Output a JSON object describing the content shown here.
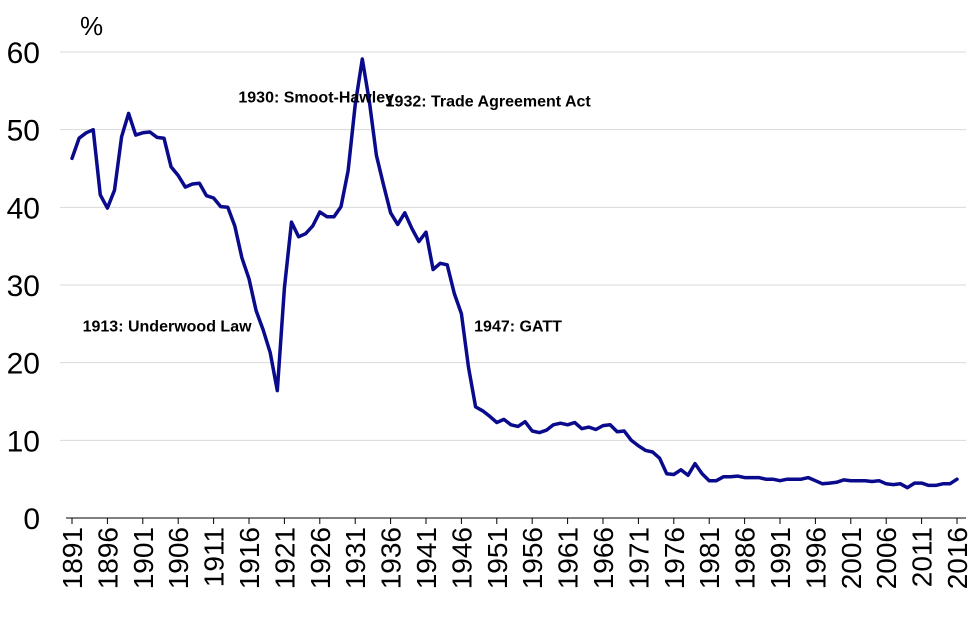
{
  "chart_data": {
    "type": "line",
    "title": "",
    "xlabel": "",
    "ylabel": "%",
    "ylim": [
      0,
      60
    ],
    "xlim": [
      1891,
      2016
    ],
    "y_ticks": [
      0,
      10,
      20,
      30,
      40,
      50,
      60
    ],
    "x_ticks": [
      1891,
      1896,
      1901,
      1906,
      1911,
      1916,
      1921,
      1926,
      1931,
      1936,
      1941,
      1946,
      1951,
      1956,
      1961,
      1966,
      1971,
      1976,
      1981,
      1986,
      1991,
      1996,
      2001,
      2006,
      2011,
      2016
    ],
    "grid": true,
    "line_color": "#0a0a8c",
    "series": [
      {
        "x": [
          1891,
          1892,
          1893,
          1894,
          1895,
          1896,
          1897,
          1898,
          1899,
          1900,
          1901,
          1902,
          1903,
          1904,
          1905,
          1906,
          1907,
          1908,
          1909,
          1910,
          1911,
          1912,
          1913,
          1914,
          1915,
          1916,
          1917,
          1918,
          1919,
          1920,
          1921,
          1922,
          1923,
          1924,
          1925,
          1926,
          1927,
          1928,
          1929,
          1930,
          1931,
          1932,
          1933,
          1934,
          1935,
          1936,
          1937,
          1938,
          1939,
          1940,
          1941,
          1942,
          1943,
          1944,
          1945,
          1946,
          1947,
          1948,
          1949,
          1950,
          1951,
          1952,
          1953,
          1954,
          1955,
          1956,
          1957,
          1958,
          1959,
          1960,
          1961,
          1962,
          1963,
          1964,
          1965,
          1966,
          1967,
          1968,
          1969,
          1970,
          1971,
          1972,
          1973,
          1974,
          1975,
          1976,
          1977,
          1978,
          1979,
          1980,
          1981,
          1982,
          1983,
          1984,
          1985,
          1986,
          1987,
          1988,
          1989,
          1990,
          1991,
          1992,
          1993,
          1994,
          1995,
          1996,
          1997,
          1998,
          1999,
          2000,
          2001,
          2002,
          2003,
          2004,
          2005,
          2006,
          2007,
          2008,
          2009,
          2010,
          2011,
          2012,
          2013,
          2014,
          2015,
          2016
        ],
        "values": [
          46.3,
          48.9,
          49.6,
          50.0,
          41.6,
          39.9,
          42.2,
          49.1,
          52.1,
          49.3,
          49.6,
          49.7,
          49.0,
          48.9,
          45.2,
          44.1,
          42.6,
          43.0,
          43.1,
          41.5,
          41.2,
          40.1,
          40.0,
          37.6,
          33.5,
          30.8,
          26.7,
          24.2,
          21.3,
          16.4,
          29.6,
          38.1,
          36.2,
          36.6,
          37.6,
          39.4,
          38.8,
          38.8,
          40.1,
          44.7,
          53.2,
          59.1,
          53.6,
          46.7,
          42.9,
          39.3,
          37.8,
          39.3,
          37.3,
          35.6,
          36.8,
          32.0,
          32.8,
          32.6,
          28.9,
          26.3,
          19.4,
          14.3,
          13.8,
          13.1,
          12.3,
          12.7,
          12.0,
          11.8,
          12.4,
          11.2,
          11.0,
          11.3,
          12.0,
          12.2,
          12.0,
          12.3,
          11.5,
          11.7,
          11.4,
          11.9,
          12.0,
          11.1,
          11.2,
          10.0,
          9.3,
          8.7,
          8.5,
          7.7,
          5.7,
          5.6,
          6.2,
          5.5,
          7.0,
          5.7,
          4.8,
          4.8,
          5.3,
          5.3,
          5.4,
          5.2,
          5.2,
          5.2,
          5.0,
          5.0,
          4.8,
          5.0,
          5.0,
          5.0,
          5.2,
          4.8,
          4.4,
          4.5,
          4.6,
          4.9,
          4.8,
          4.8,
          4.8,
          4.7,
          4.8,
          4.4,
          4.3,
          4.4,
          3.9,
          4.5,
          4.5,
          4.2,
          4.2,
          4.4,
          4.4,
          5.0
        ]
      }
    ],
    "annotations": [
      {
        "label": "1930: Smoot-Hawley",
        "x": 1914.5,
        "y": 53.5
      },
      {
        "label": "1932: Trade Agreement Act",
        "x": 1935.3,
        "y": 53.0
      },
      {
        "label": "1913: Underwood Law",
        "x": 1892.5,
        "y": 24.0
      },
      {
        "label": "1947: GATT",
        "x": 1947.8,
        "y": 24.0
      }
    ]
  }
}
